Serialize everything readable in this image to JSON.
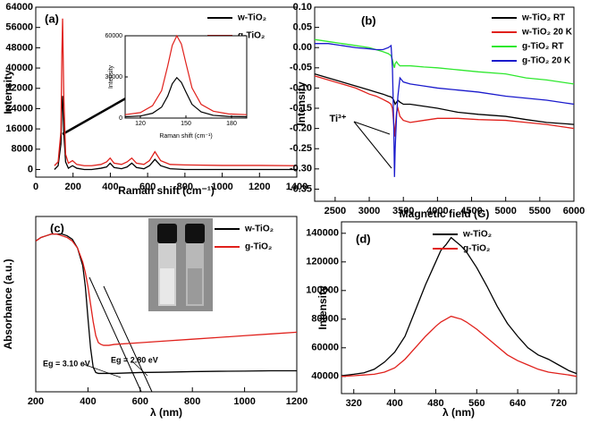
{
  "chart_data": [
    {
      "type": "line",
      "label": "(a)",
      "x_label": "Raman shift (cm⁻¹)",
      "y_label": "Intensity",
      "xlim": [
        0,
        1400
      ],
      "xticks": [
        0,
        200,
        400,
        600,
        800,
        1000,
        1200,
        1400
      ],
      "ylim": [
        -3000,
        64000
      ],
      "yticks": [
        0,
        8000,
        16000,
        24000,
        32000,
        40000,
        48000,
        56000,
        64000
      ],
      "x": [
        100,
        120,
        135,
        140,
        144,
        150,
        160,
        175,
        197,
        220,
        260,
        300,
        350,
        380,
        399,
        420,
        460,
        490,
        515,
        540,
        580,
        610,
        639,
        670,
        720,
        800,
        1000,
        1200,
        1400
      ],
      "series": [
        {
          "name": "w-TiO₂",
          "color": "#000000",
          "values": [
            0,
            1500,
            10000,
            25000,
            29000,
            15000,
            3000,
            500,
            1500,
            500,
            0,
            0,
            500,
            1000,
            2500,
            800,
            300,
            1000,
            2500,
            800,
            300,
            1500,
            4000,
            1500,
            300,
            0,
            0,
            0,
            0
          ]
        },
        {
          "name": "g-TiO₂",
          "color": "#e0201b",
          "values": [
            1500,
            3000,
            15000,
            45000,
            59500,
            30000,
            6000,
            2500,
            3500,
            2000,
            1500,
            1500,
            2000,
            3000,
            4500,
            2500,
            2000,
            3000,
            4500,
            2500,
            2000,
            3500,
            7000,
            3500,
            2000,
            1800,
            1600,
            1600,
            1500
          ]
        }
      ]
    },
    {
      "type": "line",
      "x_label": "Raman shift (cm⁻¹)",
      "y_label": "Intensity",
      "xlim": [
        110,
        190
      ],
      "xticks": [
        120,
        150,
        180
      ],
      "ylim": [
        0,
        60000
      ],
      "yticks": [
        0,
        30000,
        60000
      ],
      "x": [
        110,
        120,
        128,
        134,
        138,
        141,
        144,
        147,
        150,
        154,
        160,
        168,
        178,
        190
      ],
      "series": [
        {
          "color": "#000000",
          "values": [
            1000,
            1500,
            3500,
            8000,
            16000,
            25000,
            29500,
            26000,
            19000,
            10000,
            4500,
            2000,
            1200,
            1000
          ]
        },
        {
          "color": "#e0201b",
          "values": [
            2500,
            4000,
            9000,
            20000,
            38000,
            53000,
            60000,
            54000,
            40000,
            22000,
            10000,
            5000,
            3000,
            2500
          ]
        }
      ]
    },
    {
      "type": "line",
      "label": "(b)",
      "x_label": "Magnetic field (G)",
      "y_label": "Intensity",
      "annotation": "Ti³⁺",
      "xlim": [
        2200,
        6000
      ],
      "xticks": [
        2500,
        3000,
        3500,
        4000,
        4500,
        5000,
        5500,
        6000
      ],
      "ylim": [
        -0.38,
        0.1
      ],
      "yticks": [
        {
          "value": 0.1,
          "label": "0.10"
        },
        0.05,
        {
          "value": 0,
          "label": "0.00"
        },
        -0.05,
        {
          "value": -0.1,
          "label": "-0.10"
        },
        -0.15,
        {
          "value": -0.2,
          "label": "-0.20"
        },
        -0.25,
        {
          "value": -0.3,
          "label": "-0.30"
        },
        -0.35
      ],
      "x": [
        2200,
        2400,
        2600,
        2800,
        3000,
        3100,
        3200,
        3280,
        3320,
        3340,
        3360,
        3370,
        3380,
        3400,
        3420,
        3450,
        3500,
        3600,
        3800,
        4000,
        4300,
        4600,
        5000,
        5300,
        5600,
        6000
      ],
      "series": [
        {
          "name": "w-TiO₂ RT",
          "color": "#000000",
          "values": [
            -0.065,
            -0.075,
            -0.085,
            -0.095,
            -0.105,
            -0.11,
            -0.115,
            -0.12,
            -0.122,
            -0.125,
            -0.13,
            -0.135,
            -0.14,
            -0.135,
            -0.13,
            -0.135,
            -0.14,
            -0.14,
            -0.145,
            -0.15,
            -0.16,
            -0.165,
            -0.17,
            -0.178,
            -0.185,
            -0.19
          ]
        },
        {
          "name": "w-TiO₂ 20 K",
          "color": "#e0201b",
          "values": [
            -0.07,
            -0.08,
            -0.09,
            -0.1,
            -0.115,
            -0.12,
            -0.128,
            -0.135,
            -0.14,
            -0.15,
            -0.19,
            -0.22,
            -0.2,
            -0.16,
            -0.15,
            -0.17,
            -0.18,
            -0.185,
            -0.18,
            -0.175,
            -0.175,
            -0.178,
            -0.18,
            -0.185,
            -0.19,
            -0.2
          ]
        },
        {
          "name": "g-TiO₂ RT",
          "color": "#2ee82e",
          "values": [
            0.02,
            0.015,
            0.01,
            0.005,
            0,
            -0.005,
            -0.01,
            -0.015,
            -0.02,
            -0.03,
            -0.045,
            -0.05,
            -0.04,
            -0.035,
            -0.04,
            -0.045,
            -0.045,
            -0.045,
            -0.048,
            -0.05,
            -0.055,
            -0.06,
            -0.065,
            -0.075,
            -0.08,
            -0.09
          ]
        },
        {
          "name": "g-TiO₂ 20 K",
          "color": "#1a1acc",
          "values": [
            0.01,
            0.01,
            0.005,
            0,
            -0.003,
            -0.005,
            -0.005,
            0,
            0.005,
            -0.05,
            -0.2,
            -0.32,
            -0.25,
            -0.17,
            -0.12,
            -0.075,
            -0.085,
            -0.09,
            -0.095,
            -0.1,
            -0.105,
            -0.11,
            -0.12,
            -0.125,
            -0.13,
            -0.14
          ]
        }
      ]
    },
    {
      "type": "line",
      "label": "(c)",
      "x_label": "λ (nm)",
      "y_label": "Absorbance (a.u.)",
      "annotations": [
        "Eg = 3.10 eV",
        "Eg = 2.80 eV"
      ],
      "xlim": [
        200,
        1200
      ],
      "xticks": [
        200,
        400,
        600,
        800,
        1000,
        1200
      ],
      "ylim": [
        0,
        1
      ],
      "x": [
        200,
        220,
        240,
        260,
        280,
        300,
        320,
        340,
        360,
        380,
        390,
        400,
        410,
        420,
        430,
        440,
        450,
        460,
        480,
        500,
        600,
        700,
        800,
        900,
        1000,
        1100,
        1200
      ],
      "series": [
        {
          "name": "w-TiO₂",
          "color": "#000000",
          "values": [
            0.86,
            0.88,
            0.89,
            0.9,
            0.9,
            0.9,
            0.89,
            0.87,
            0.82,
            0.72,
            0.6,
            0.42,
            0.25,
            0.14,
            0.11,
            0.105,
            0.105,
            0.105,
            0.105,
            0.105,
            0.11,
            0.112,
            0.115,
            0.117,
            0.118,
            0.12,
            0.12
          ]
        },
        {
          "name": "g-TiO₂",
          "color": "#e0201b",
          "values": [
            0.86,
            0.88,
            0.89,
            0.9,
            0.9,
            0.89,
            0.88,
            0.86,
            0.82,
            0.74,
            0.68,
            0.6,
            0.5,
            0.4,
            0.32,
            0.28,
            0.27,
            0.265,
            0.265,
            0.27,
            0.28,
            0.29,
            0.3,
            0.31,
            0.32,
            0.33,
            0.34
          ]
        }
      ]
    },
    {
      "type": "line",
      "label": "(d)",
      "x_label": "λ (nm)",
      "y_label": "Intensity",
      "xlim": [
        296,
        755
      ],
      "xticks": [
        320,
        400,
        480,
        560,
        640,
        720
      ],
      "ylim": [
        28000,
        148000
      ],
      "yticks": [
        40000,
        60000,
        80000,
        100000,
        120000,
        140000
      ],
      "x": [
        296,
        320,
        340,
        360,
        380,
        400,
        420,
        440,
        460,
        480,
        490,
        500,
        510,
        520,
        530,
        540,
        560,
        580,
        600,
        620,
        640,
        660,
        680,
        700,
        720,
        740,
        755
      ],
      "series": [
        {
          "name": "w-TiO₂",
          "color": "#000000",
          "values": [
            40500,
            41500,
            42500,
            45000,
            50000,
            57000,
            68000,
            86000,
            104000,
            120000,
            128000,
            132000,
            137000,
            134000,
            131000,
            127000,
            116000,
            103000,
            89000,
            77000,
            68000,
            60000,
            55000,
            52000,
            48000,
            44000,
            42000
          ]
        },
        {
          "name": "g-TiO₂",
          "color": "#e0201b",
          "values": [
            40000,
            40500,
            41000,
            41500,
            43000,
            46000,
            52000,
            60000,
            68000,
            75000,
            78000,
            80000,
            82000,
            81000,
            80000,
            78000,
            73000,
            67000,
            61000,
            55000,
            51000,
            48000,
            45000,
            43000,
            42000,
            41000,
            40000
          ]
        }
      ]
    }
  ]
}
